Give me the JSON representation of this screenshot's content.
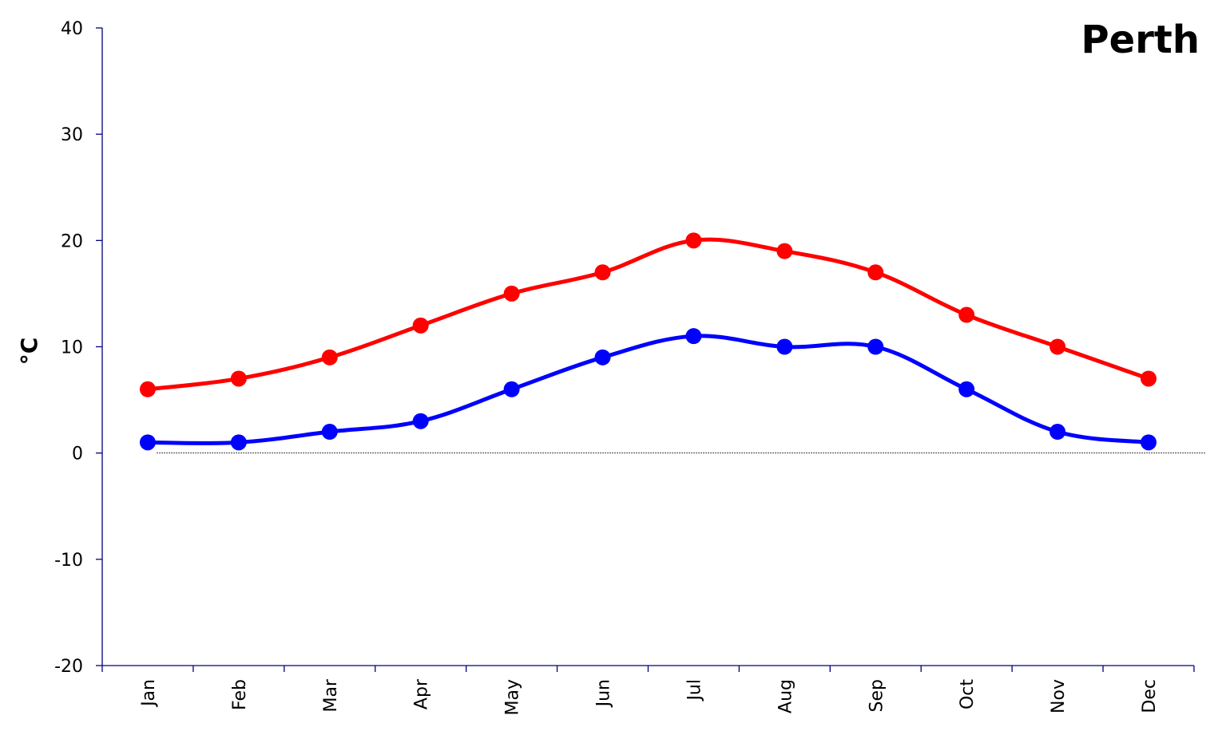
{
  "chart_data": {
    "type": "line",
    "title": "Perth",
    "ylabel": "°C",
    "xlabel": "",
    "categories": [
      "Jan",
      "Feb",
      "Mar",
      "Apr",
      "May",
      "Jun",
      "Jul",
      "Aug",
      "Sep",
      "Oct",
      "Nov",
      "Dec"
    ],
    "ylim": [
      -20,
      40
    ],
    "yticks": [
      40,
      30,
      20,
      10,
      0,
      -10,
      -20
    ],
    "grid": false,
    "zero_line": true,
    "legend": "none",
    "series": [
      {
        "color": "#ff0000",
        "values": [
          6,
          7,
          9,
          12,
          15,
          17,
          20,
          19,
          17,
          13,
          10,
          7
        ]
      },
      {
        "color": "#0000ff",
        "values": [
          1,
          1,
          2,
          3,
          6,
          9,
          11,
          10,
          10,
          6,
          2,
          1
        ]
      }
    ]
  }
}
